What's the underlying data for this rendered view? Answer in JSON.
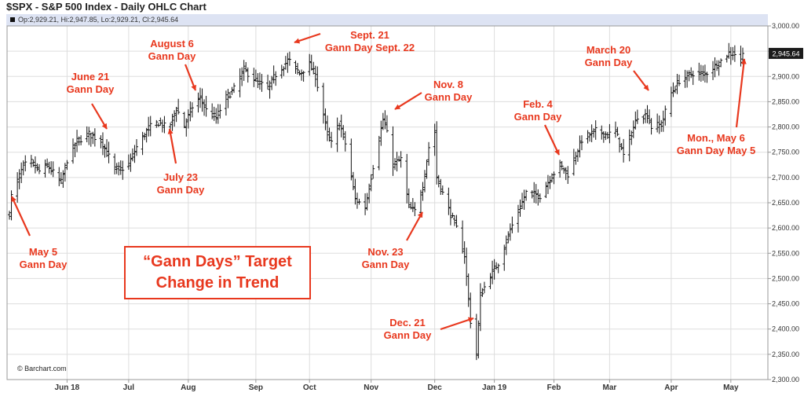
{
  "header": {
    "title": "$SPX - S&P 500 Index - Daily OHLC Chart",
    "ohlc_readout": "Op:2,929.21, Hi:2,947.85, Lo:2,929.21, Cl:2,945.64"
  },
  "watermark": "© Barchart.com",
  "callout": {
    "line1": "“Gann Days” Target",
    "line2": "Change in Trend"
  },
  "annotations": [
    {
      "id": "may5",
      "line1": "May 5",
      "line2": "Gann Day"
    },
    {
      "id": "jun21",
      "line1": "June 21",
      "line2": "Gann Day"
    },
    {
      "id": "aug6",
      "line1": "August 6",
      "line2": "Gann Day"
    },
    {
      "id": "jul23",
      "line1": "July 23",
      "line2": "Gann Day"
    },
    {
      "id": "sep21",
      "line1": "Sept. 21",
      "line2": "Gann Day Sept. 22"
    },
    {
      "id": "nov8",
      "line1": "Nov. 8",
      "line2": "Gann Day"
    },
    {
      "id": "nov23",
      "line1": "Nov. 23",
      "line2": "Gann Day"
    },
    {
      "id": "dec21",
      "line1": "Dec. 21",
      "line2": "Gann Day"
    },
    {
      "id": "feb4",
      "line1": "Feb. 4",
      "line2": "Gann Day"
    },
    {
      "id": "mar20",
      "line1": "March 20",
      "line2": "Gann Day"
    },
    {
      "id": "may6",
      "line1": "Mon., May 6",
      "line2": "Gann Day May 5"
    }
  ],
  "colors": {
    "annotation": "#e8381e",
    "bar": "#111111",
    "grid": "#dddddd",
    "header_band": "#dde3f3"
  },
  "chart_data": {
    "type": "ohlc",
    "title": "$SPX - S&P 500 Index - Daily OHLC Chart",
    "ylim": [
      2300,
      3000
    ],
    "y_ticks": [
      2300,
      2350,
      2400,
      2450,
      2500,
      2550,
      2600,
      2650,
      2700,
      2750,
      2800,
      2850,
      2900,
      2950,
      3000
    ],
    "y_tick_labels": [
      "2,300.00",
      "2,350.00",
      "2,400.00",
      "2,450.00",
      "2,500.00",
      "2,550.00",
      "2,600.00",
      "2,650.00",
      "2,700.00",
      "2,750.00",
      "2,800.00",
      "2,850.00",
      "2,900.00",
      "2,950.00",
      "3,000.00"
    ],
    "x_range": [
      "2018-05-03",
      "2019-05-07"
    ],
    "x_ticks": [
      {
        "label": "Jun 18",
        "date": "2018-06-01"
      },
      {
        "label": "Jul",
        "date": "2018-07-02"
      },
      {
        "label": "Aug",
        "date": "2018-08-01"
      },
      {
        "label": "Sep",
        "date": "2018-09-04"
      },
      {
        "label": "Oct",
        "date": "2018-10-01"
      },
      {
        "label": "Nov",
        "date": "2018-11-01"
      },
      {
        "label": "Dec",
        "date": "2018-12-03"
      },
      {
        "label": "Jan 19",
        "date": "2019-01-02"
      },
      {
        "label": "Feb",
        "date": "2019-02-01"
      },
      {
        "label": "Mar",
        "date": "2019-03-01"
      },
      {
        "label": "Apr",
        "date": "2019-04-01"
      },
      {
        "label": "May",
        "date": "2019-05-01"
      }
    ],
    "last_price_label": "2,945.64",
    "last_price": 2945.64,
    "grid": true,
    "close_path": [
      [
        "2018-05-03",
        2630
      ],
      [
        "2018-05-04",
        2663
      ],
      [
        "2018-05-10",
        2723
      ],
      [
        "2018-05-14",
        2730
      ],
      [
        "2018-05-18",
        2712
      ],
      [
        "2018-05-22",
        2724
      ],
      [
        "2018-05-29",
        2690
      ],
      [
        "2018-06-01",
        2735
      ],
      [
        "2018-06-06",
        2772
      ],
      [
        "2018-06-12",
        2786
      ],
      [
        "2018-06-18",
        2773
      ],
      [
        "2018-06-21",
        2749
      ],
      [
        "2018-06-25",
        2717
      ],
      [
        "2018-06-28",
        2716
      ],
      [
        "2018-07-02",
        2726
      ],
      [
        "2018-07-06",
        2760
      ],
      [
        "2018-07-12",
        2798
      ],
      [
        "2018-07-17",
        2809
      ],
      [
        "2018-07-20",
        2801
      ],
      [
        "2018-07-23",
        2806
      ],
      [
        "2018-07-26",
        2837
      ],
      [
        "2018-07-30",
        2802
      ],
      [
        "2018-08-03",
        2840
      ],
      [
        "2018-08-07",
        2858
      ],
      [
        "2018-08-10",
        2833
      ],
      [
        "2018-08-15",
        2818
      ],
      [
        "2018-08-20",
        2858
      ],
      [
        "2018-08-24",
        2875
      ],
      [
        "2018-08-29",
        2914
      ],
      [
        "2018-09-05",
        2888
      ],
      [
        "2018-09-10",
        2877
      ],
      [
        "2018-09-14",
        2904
      ],
      [
        "2018-09-20",
        2931
      ],
      [
        "2018-09-21",
        2930
      ],
      [
        "2018-09-26",
        2906
      ],
      [
        "2018-10-01",
        2924
      ],
      [
        "2018-10-04",
        2901
      ],
      [
        "2018-10-10",
        2786
      ],
      [
        "2018-10-12",
        2767
      ],
      [
        "2018-10-16",
        2809
      ],
      [
        "2018-10-19",
        2767
      ],
      [
        "2018-10-24",
        2657
      ],
      [
        "2018-10-29",
        2641
      ],
      [
        "2018-11-02",
        2723
      ],
      [
        "2018-11-07",
        2814
      ],
      [
        "2018-11-08",
        2806
      ],
      [
        "2018-11-12",
        2726
      ],
      [
        "2018-11-16",
        2736
      ],
      [
        "2018-11-20",
        2641
      ],
      [
        "2018-11-23",
        2633
      ],
      [
        "2018-11-27",
        2682
      ],
      [
        "2018-11-30",
        2760
      ],
      [
        "2018-12-03",
        2790
      ],
      [
        "2018-12-04",
        2700
      ],
      [
        "2018-12-10",
        2637
      ],
      [
        "2018-12-14",
        2599
      ],
      [
        "2018-12-18",
        2546
      ],
      [
        "2018-12-21",
        2416
      ],
      [
        "2018-12-24",
        2351
      ],
      [
        "2018-12-26",
        2467
      ],
      [
        "2018-12-31",
        2507
      ],
      [
        "2019-01-04",
        2531
      ],
      [
        "2019-01-10",
        2596
      ],
      [
        "2019-01-18",
        2670
      ],
      [
        "2019-01-25",
        2664
      ],
      [
        "2019-01-31",
        2704
      ],
      [
        "2019-02-04",
        2724
      ],
      [
        "2019-02-08",
        2707
      ],
      [
        "2019-02-15",
        2775
      ],
      [
        "2019-02-22",
        2792
      ],
      [
        "2019-02-28",
        2784
      ],
      [
        "2019-03-04",
        2792
      ],
      [
        "2019-03-08",
        2743
      ],
      [
        "2019-03-15",
        2822
      ],
      [
        "2019-03-20",
        2824
      ],
      [
        "2019-03-22",
        2800
      ],
      [
        "2019-03-27",
        2805
      ],
      [
        "2019-04-01",
        2867
      ],
      [
        "2019-04-05",
        2892
      ],
      [
        "2019-04-12",
        2907
      ],
      [
        "2019-04-18",
        2905
      ],
      [
        "2019-04-25",
        2927
      ],
      [
        "2019-04-30",
        2946
      ],
      [
        "2019-05-03",
        2945
      ],
      [
        "2019-05-06",
        2932
      ],
      [
        "2019-05-07",
        2945.64
      ]
    ]
  }
}
